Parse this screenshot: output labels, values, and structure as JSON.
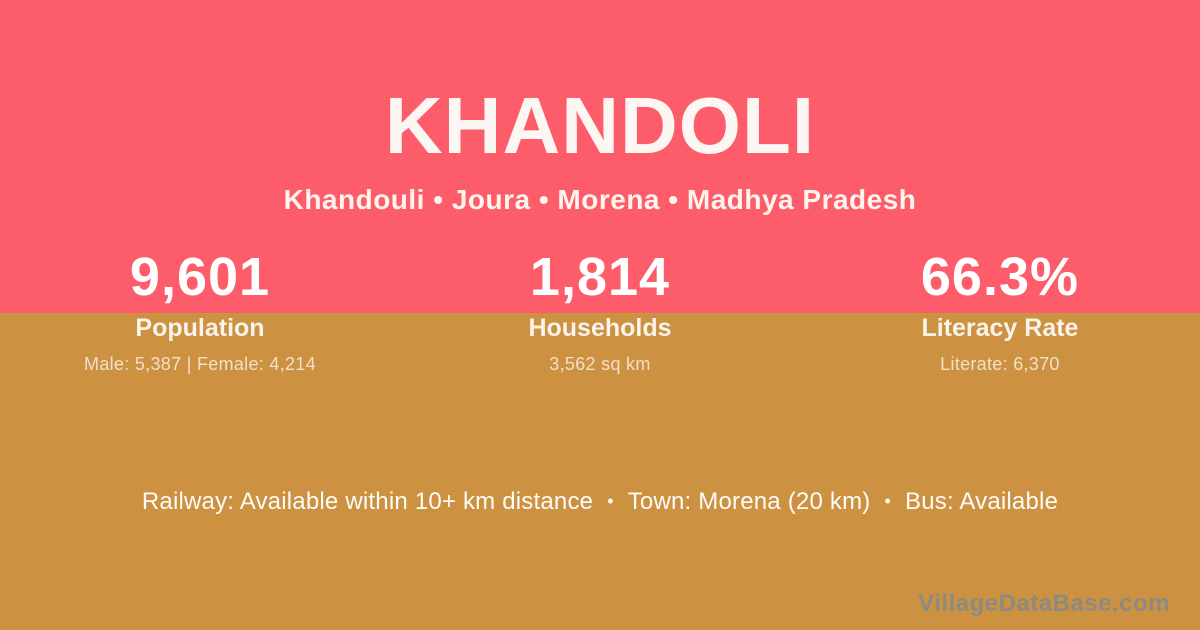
{
  "card": {
    "title": "KHANDOLI",
    "breadcrumb": "Khandouli • Joura • Morena • Madhya Pradesh"
  },
  "colors": {
    "header_background": "#fd5c6b",
    "body_background": "#cc9141",
    "text_primary": "#ffffff",
    "text_detail": "rgba(255,255,255,0.72)",
    "watermark_gray": "#8d8a82"
  },
  "stats": [
    {
      "value": "9,601",
      "label": "Population",
      "detail": "Male: 5,387 | Female: 4,214"
    },
    {
      "value": "1,814",
      "label": "Households",
      "detail": "3,562 sq km"
    },
    {
      "value": "66.3%",
      "label": "Literacy Rate",
      "detail": "Literate: 6,370"
    }
  ],
  "footer": {
    "separator": "•",
    "segments": [
      "Railway: Available within 10+ km distance",
      "Town: Morena (20 km)",
      "Bus: Available"
    ],
    "watermark": "VillageDataBase.com"
  }
}
